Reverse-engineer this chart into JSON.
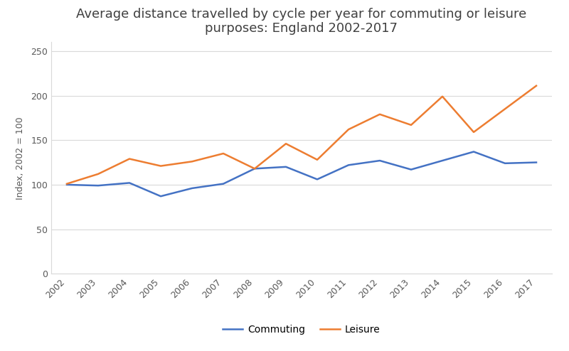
{
  "title": "Average distance travelled by cycle per year for commuting or leisure\npurposes: England 2002-2017",
  "ylabel": "Index, 2002 = 100",
  "years": [
    2002,
    2003,
    2004,
    2005,
    2006,
    2007,
    2008,
    2009,
    2010,
    2011,
    2012,
    2013,
    2014,
    2015,
    2016,
    2017
  ],
  "commuting": [
    100,
    99,
    102,
    87,
    96,
    101,
    118,
    120,
    106,
    122,
    127,
    117,
    127,
    137,
    124,
    125
  ],
  "leisure": [
    101,
    112,
    129,
    121,
    126,
    135,
    118,
    146,
    128,
    162,
    179,
    167,
    199,
    159,
    185,
    211
  ],
  "commuting_color": "#4472c4",
  "leisure_color": "#ed7d31",
  "background_color": "#ffffff",
  "plot_bg_color": "#ffffff",
  "grid_color": "#d9d9d9",
  "spine_color": "#d9d9d9",
  "ylim": [
    0,
    260
  ],
  "yticks": [
    0,
    50,
    100,
    150,
    200,
    250
  ],
  "title_fontsize": 13,
  "axis_fontsize": 9,
  "ylabel_fontsize": 9,
  "legend_fontsize": 10,
  "linewidth": 1.8,
  "legend_labels": [
    "Commuting",
    "Leisure"
  ]
}
